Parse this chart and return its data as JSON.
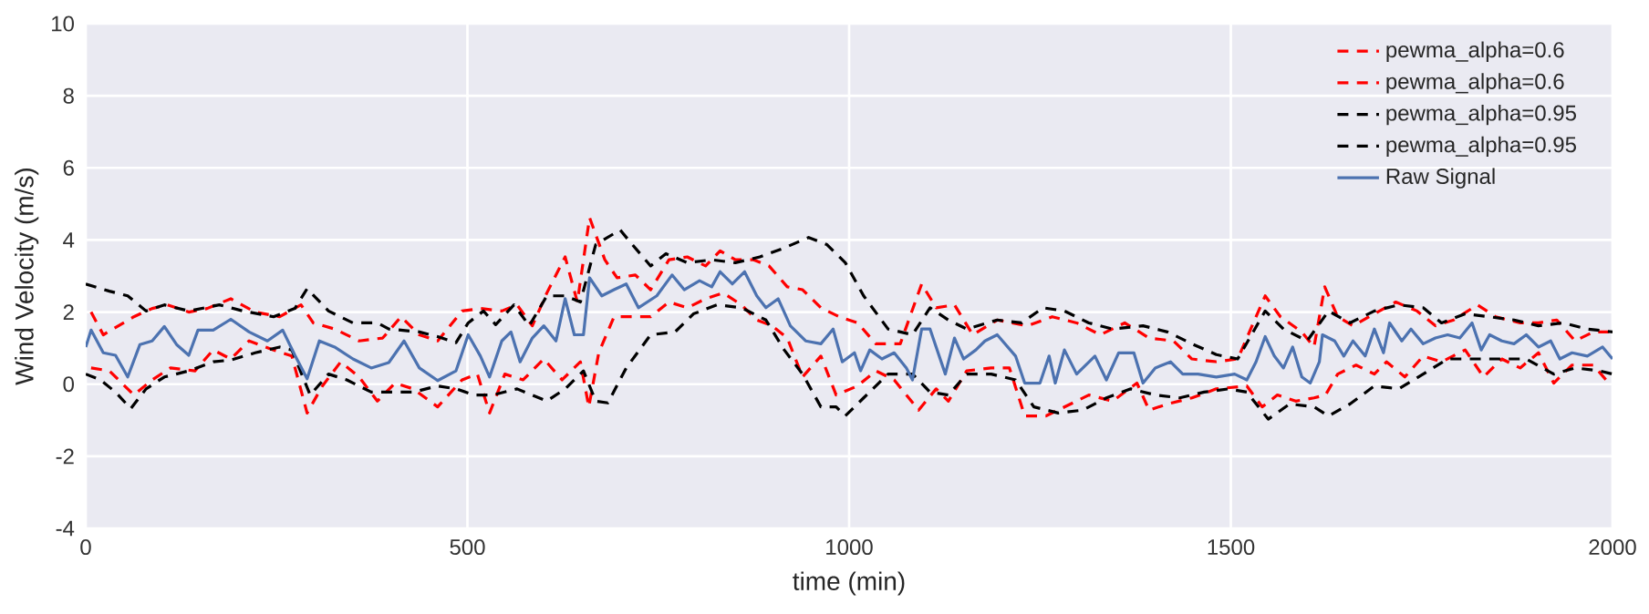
{
  "chart_data": {
    "type": "line",
    "xlabel": "time (min)",
    "ylabel": "Wind Velocity (m/s)",
    "xlim": [
      0,
      2000
    ],
    "ylim": [
      -4,
      10
    ],
    "xticks": [
      0,
      500,
      1000,
      1500,
      2000
    ],
    "yticks": [
      -4,
      -2,
      0,
      2,
      4,
      6,
      8,
      10
    ],
    "grid": true,
    "legend": "top right",
    "series": [
      {
        "name": "pewma_alpha=0.6",
        "color": "#ff0000",
        "line_style": "dashed",
        "x": [
          7,
          23,
          63,
          87,
          107,
          135,
          159,
          190,
          222,
          254,
          282,
          298,
          326,
          358,
          389,
          413,
          437,
          461,
          493,
          517,
          545,
          565,
          585,
          604,
          628,
          644,
          660,
          680,
          696,
          720,
          740,
          764,
          788,
          812,
          831,
          851,
          875,
          895,
          919,
          939,
          963,
          987,
          1011,
          1035,
          1067,
          1095,
          1114,
          1138,
          1162,
          1194,
          1234,
          1266,
          1298,
          1329,
          1361,
          1393,
          1425,
          1449,
          1481,
          1509,
          1545,
          1565,
          1593,
          1609,
          1623,
          1640,
          1660,
          1688,
          1716,
          1744,
          1768,
          1792,
          1823,
          1847,
          1879,
          1903,
          1927,
          1951,
          1975,
          2000
        ],
        "values": [
          2.0,
          1.37,
          1.87,
          2.1,
          2.2,
          2.0,
          2.1,
          2.37,
          2.0,
          1.87,
          2.2,
          1.7,
          1.53,
          1.2,
          1.28,
          1.87,
          1.37,
          1.2,
          2.03,
          2.1,
          2.03,
          2.2,
          1.62,
          2.53,
          3.53,
          2.28,
          4.62,
          3.45,
          2.95,
          3.03,
          2.62,
          3.45,
          3.53,
          3.28,
          3.7,
          3.45,
          3.45,
          3.28,
          2.7,
          2.62,
          2.12,
          1.87,
          1.7,
          1.12,
          1.12,
          2.78,
          2.12,
          2.2,
          1.37,
          1.78,
          1.62,
          1.87,
          1.7,
          1.37,
          1.7,
          1.28,
          1.2,
          0.7,
          0.62,
          0.7,
          2.45,
          1.87,
          1.45,
          1.03,
          2.7,
          1.87,
          1.62,
          1.95,
          2.28,
          2.03,
          1.62,
          1.78,
          2.2,
          1.87,
          1.7,
          1.7,
          1.78,
          1.2,
          1.45,
          1.45
        ]
      },
      {
        "name": "pewma_alpha=0.6",
        "color": "#ff0000",
        "line_style": "dashed",
        "x": [
          7,
          31,
          63,
          87,
          111,
          143,
          167,
          190,
          214,
          246,
          270,
          290,
          310,
          334,
          358,
          382,
          405,
          429,
          461,
          493,
          513,
          529,
          549,
          573,
          600,
          624,
          648,
          659,
          672,
          692,
          716,
          740,
          764,
          788,
          812,
          835,
          859,
          879,
          899,
          919,
          939,
          963,
          983,
          1011,
          1035,
          1059,
          1091,
          1114,
          1130,
          1154,
          1186,
          1210,
          1230,
          1258,
          1290,
          1314,
          1345,
          1377,
          1393,
          1417,
          1449,
          1481,
          1521,
          1541,
          1561,
          1585,
          1609,
          1624,
          1640,
          1664,
          1688,
          1704,
          1728,
          1752,
          1776,
          1807,
          1831,
          1855,
          1879,
          1903,
          1923,
          1947,
          1975,
          1995
        ],
        "values": [
          0.45,
          0.37,
          -0.3,
          0.12,
          0.45,
          0.37,
          0.95,
          0.7,
          1.2,
          0.95,
          0.78,
          -0.8,
          -0.05,
          0.62,
          0.2,
          -0.47,
          0.03,
          -0.13,
          -0.63,
          0.12,
          0.28,
          -0.8,
          0.28,
          0.12,
          0.7,
          0.12,
          0.62,
          -0.63,
          0.87,
          1.87,
          1.87,
          1.87,
          2.28,
          2.12,
          2.37,
          2.53,
          2.2,
          1.78,
          1.62,
          1.28,
          0.2,
          0.78,
          -0.3,
          -0.05,
          0.37,
          0.12,
          -0.72,
          -0.13,
          -0.47,
          0.37,
          0.45,
          0.45,
          -0.88,
          -0.88,
          -0.55,
          -0.3,
          -0.47,
          0.03,
          -0.72,
          -0.55,
          -0.38,
          -0.13,
          -0.05,
          -0.63,
          -0.3,
          -0.47,
          -0.38,
          -0.3,
          0.28,
          0.53,
          0.28,
          0.62,
          0.2,
          0.78,
          0.62,
          0.95,
          0.2,
          0.7,
          0.45,
          0.87,
          0.03,
          0.53,
          0.53,
          0.03
        ]
      },
      {
        "name": "pewma_alpha=0.95",
        "color": "#000000",
        "line_style": "dashed",
        "x": [
          0,
          31,
          55,
          79,
          103,
          135,
          175,
          206,
          246,
          274,
          290,
          318,
          350,
          382,
          397,
          437,
          461,
          485,
          501,
          521,
          537,
          561,
          581,
          604,
          628,
          648,
          668,
          700,
          716,
          740,
          760,
          788,
          820,
          851,
          883,
          915,
          947,
          971,
          995,
          1019,
          1051,
          1083,
          1106,
          1130,
          1154,
          1194,
          1226,
          1254,
          1282,
          1314,
          1345,
          1385,
          1417,
          1449,
          1481,
          1509,
          1545,
          1569,
          1600,
          1628,
          1656,
          1688,
          1720,
          1752,
          1776,
          1807,
          1839,
          1871,
          1903,
          1935,
          1967,
          2000
        ],
        "values": [
          2.78,
          2.58,
          2.45,
          2.03,
          2.2,
          2.03,
          2.2,
          2.03,
          1.87,
          2.1,
          2.65,
          2.03,
          1.7,
          1.7,
          1.53,
          1.45,
          1.32,
          1.15,
          1.7,
          2.03,
          1.65,
          2.2,
          1.62,
          2.45,
          2.45,
          2.28,
          3.87,
          4.28,
          3.87,
          3.28,
          3.62,
          3.37,
          3.45,
          3.37,
          3.53,
          3.78,
          4.07,
          3.87,
          3.37,
          2.45,
          1.53,
          1.37,
          2.12,
          1.78,
          1.53,
          1.78,
          1.7,
          2.12,
          2.03,
          1.7,
          1.53,
          1.62,
          1.45,
          1.12,
          0.82,
          0.7,
          2.03,
          1.53,
          1.2,
          2.03,
          1.7,
          2.03,
          2.2,
          2.12,
          1.7,
          1.95,
          1.87,
          1.78,
          1.62,
          1.7,
          1.53,
          1.45
        ]
      },
      {
        "name": "pewma_alpha=0.95",
        "color": "#000000",
        "line_style": "dashed",
        "x": [
          0,
          19,
          39,
          59,
          79,
          103,
          135,
          167,
          190,
          222,
          254,
          270,
          294,
          318,
          342,
          374,
          397,
          429,
          461,
          485,
          509,
          533,
          565,
          604,
          628,
          652,
          668,
          684,
          708,
          740,
          772,
          796,
          827,
          859,
          891,
          915,
          939,
          963,
          983,
          995,
          1019,
          1051,
          1083,
          1106,
          1130,
          1154,
          1186,
          1218,
          1242,
          1274,
          1306,
          1337,
          1369,
          1401,
          1433,
          1465,
          1497,
          1521,
          1549,
          1577,
          1609,
          1628,
          1656,
          1688,
          1720,
          1752,
          1784,
          1816,
          1847,
          1887,
          1923,
          1951,
          1983,
          2000
        ],
        "values": [
          0.28,
          0.12,
          -0.22,
          -0.68,
          -0.13,
          0.2,
          0.37,
          0.62,
          0.67,
          0.87,
          1.03,
          0.95,
          -0.3,
          0.28,
          0.12,
          -0.22,
          -0.22,
          -0.22,
          -0.05,
          -0.13,
          -0.3,
          -0.3,
          -0.13,
          -0.47,
          -0.13,
          0.37,
          -0.47,
          -0.52,
          0.45,
          1.37,
          1.45,
          1.95,
          2.2,
          2.12,
          1.78,
          0.95,
          0.28,
          -0.63,
          -0.63,
          -0.88,
          -0.38,
          0.28,
          0.28,
          -0.22,
          -0.3,
          0.28,
          0.28,
          0.12,
          -0.63,
          -0.8,
          -0.72,
          -0.38,
          -0.13,
          -0.3,
          -0.38,
          -0.22,
          -0.13,
          -0.22,
          -0.97,
          -0.55,
          -0.63,
          -0.88,
          -0.55,
          -0.05,
          -0.13,
          0.28,
          0.7,
          0.7,
          0.7,
          0.7,
          0.28,
          0.45,
          0.37,
          0.28
        ]
      },
      {
        "name": "Raw Signal",
        "color": "#4c72b0",
        "line_style": "solid",
        "x": [
          0,
          7,
          23,
          39,
          55,
          71,
          87,
          103,
          119,
          135,
          147,
          167,
          190,
          214,
          238,
          258,
          274,
          290,
          306,
          326,
          350,
          374,
          397,
          417,
          437,
          461,
          485,
          501,
          517,
          529,
          545,
          557,
          569,
          585,
          600,
          616,
          628,
          640,
          652,
          660,
          676,
          692,
          708,
          724,
          748,
          768,
          784,
          804,
          820,
          831,
          847,
          863,
          879,
          891,
          907,
          923,
          943,
          963,
          979,
          991,
          1007,
          1015,
          1027,
          1043,
          1059,
          1075,
          1083,
          1095,
          1106,
          1126,
          1138,
          1150,
          1166,
          1178,
          1194,
          1218,
          1230,
          1250,
          1262,
          1270,
          1282,
          1298,
          1322,
          1337,
          1353,
          1373,
          1385,
          1401,
          1421,
          1437,
          1457,
          1481,
          1505,
          1521,
          1533,
          1545,
          1557,
          1569,
          1581,
          1593,
          1604,
          1616,
          1620,
          1636,
          1648,
          1660,
          1676,
          1688,
          1700,
          1708,
          1724,
          1736,
          1752,
          1768,
          1784,
          1800,
          1816,
          1828,
          1839,
          1855,
          1871,
          1887,
          1903,
          1919,
          1931,
          1947,
          1967,
          1987,
          2000
        ],
        "values": [
          1.03,
          1.5,
          0.87,
          0.8,
          0.2,
          1.1,
          1.2,
          1.6,
          1.1,
          0.8,
          1.5,
          1.5,
          1.8,
          1.45,
          1.2,
          1.5,
          0.8,
          0.15,
          1.2,
          1.03,
          0.7,
          0.45,
          0.6,
          1.2,
          0.45,
          0.1,
          0.37,
          1.37,
          0.78,
          0.2,
          1.2,
          1.45,
          0.62,
          1.28,
          1.62,
          1.2,
          2.37,
          1.37,
          1.37,
          2.95,
          2.45,
          2.62,
          2.78,
          2.12,
          2.45,
          3.03,
          2.62,
          2.87,
          2.7,
          3.12,
          2.78,
          3.12,
          2.45,
          2.12,
          2.37,
          1.62,
          1.2,
          1.12,
          1.53,
          0.62,
          0.87,
          0.37,
          0.95,
          0.7,
          0.87,
          0.45,
          0.12,
          1.53,
          1.53,
          0.28,
          1.28,
          0.7,
          0.95,
          1.2,
          1.37,
          0.78,
          0.03,
          0.03,
          0.78,
          0.03,
          0.95,
          0.28,
          0.78,
          0.12,
          0.87,
          0.87,
          0.03,
          0.45,
          0.62,
          0.28,
          0.28,
          0.2,
          0.28,
          0.12,
          0.62,
          1.32,
          0.78,
          0.45,
          1.03,
          0.2,
          0.03,
          0.62,
          1.37,
          1.2,
          0.78,
          1.2,
          0.78,
          1.53,
          0.87,
          1.7,
          1.2,
          1.53,
          1.12,
          1.28,
          1.37,
          1.28,
          1.7,
          0.95,
          1.37,
          1.2,
          1.12,
          1.37,
          1.03,
          1.2,
          0.7,
          0.87,
          0.78,
          1.03,
          0.7
        ]
      }
    ]
  }
}
